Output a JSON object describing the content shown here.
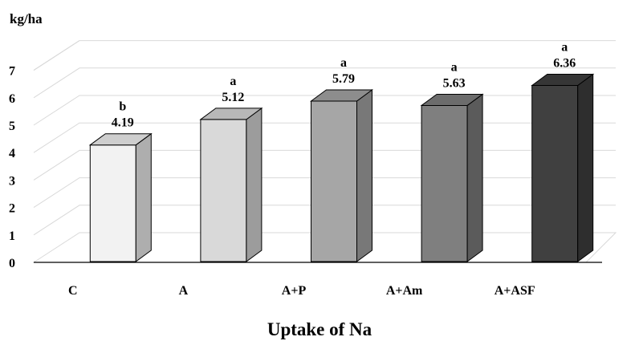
{
  "chart_data": {
    "type": "bar",
    "style": "3d-column",
    "title": "Uptake of Na",
    "ylabel": "kg/ha",
    "xlabel": "",
    "categories": [
      "C",
      "A",
      "A+P",
      "A+Am",
      "A+ASF"
    ],
    "values": [
      4.19,
      5.12,
      5.79,
      5.63,
      6.36
    ],
    "value_labels": [
      "4.19",
      "5.12",
      "5.79",
      "5.63",
      "6.36"
    ],
    "significance_letters": [
      "b",
      "a",
      "a",
      "a",
      "a"
    ],
    "ylim": [
      0,
      7
    ],
    "yticks": [
      0,
      1,
      2,
      3,
      4,
      5,
      6,
      7
    ],
    "grid": true,
    "legend": "none",
    "bar_colors": [
      "#f2f2f2",
      "#d9d9d9",
      "#a6a6a6",
      "#7f7f7f",
      "#404040"
    ]
  }
}
